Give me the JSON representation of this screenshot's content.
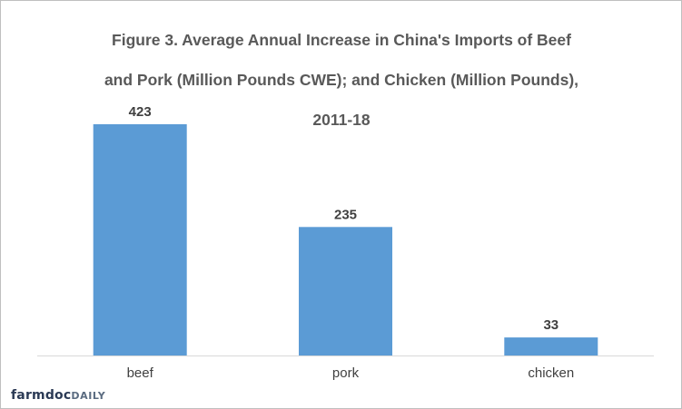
{
  "chart_data": {
    "type": "bar",
    "title": "Figure 3.  Average Annual Increase in China's Imports of Beef and Pork (Million Pounds CWE); and Chicken (Million Pounds), 2011-18",
    "title_lines": [
      "Figure 3.  Average Annual Increase in China's Imports of Beef",
      "and Pork (Million Pounds CWE); and Chicken (Million Pounds),",
      "2011-18"
    ],
    "categories": [
      "beef",
      "pork",
      "chicken"
    ],
    "values": [
      423,
      235,
      33
    ],
    "data_labels": [
      "423",
      "235",
      "33"
    ],
    "xlabel": "",
    "ylabel": "",
    "ylim": [
      0,
      423
    ],
    "grid": false,
    "legend": "none",
    "bar_color": "#5b9bd5",
    "axis_color": "#d9d9d9"
  },
  "branding": {
    "logo_text_a": "farmdoc",
    "logo_text_b": "DAILY"
  }
}
